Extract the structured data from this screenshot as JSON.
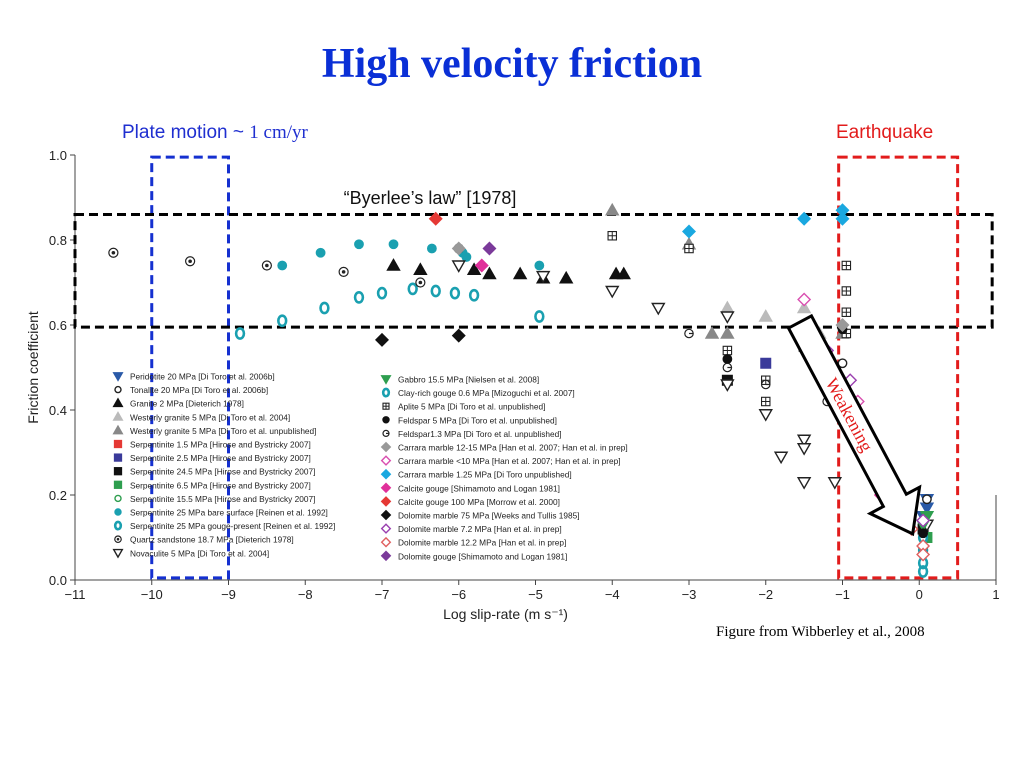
{
  "slide": {
    "title": "High velocity friction",
    "plate_note_prefix": "Plate motion ~ ",
    "plate_note_value": "1 cm/yr",
    "quake_note": "Earthquake",
    "byerlee_note": "“Byerlee’s law” [1978]",
    "weakening_label": "Weakening",
    "source": "Figure from Wibberley et al., 2008"
  },
  "chart_data": {
    "type": "scatter",
    "xlabel": "Log slip-rate (m s⁻¹)",
    "ylabel": "Friction coefficient",
    "xlim": [
      -11,
      1
    ],
    "ylim": [
      0,
      1.0
    ],
    "xticks": [
      -11,
      -10,
      -9,
      -8,
      -7,
      -6,
      -5,
      -4,
      -3,
      -2,
      -1,
      0,
      1
    ],
    "xtick_labels": [
      "−11",
      "−10",
      "−9",
      "−8",
      "−7",
      "−6",
      "−5",
      "−4",
      "−3",
      "−2",
      "−1",
      "0",
      "1"
    ],
    "yticks": [
      0,
      0.2,
      0.4,
      0.6,
      0.8,
      1.0
    ],
    "ytick_labels": [
      "0.0",
      "0.2",
      "0.4",
      "0.6",
      "0.8",
      "1.0"
    ],
    "grid": false,
    "legend_placement": "bottom-left",
    "regions": [
      {
        "label": "plate-motion",
        "x": [
          -10,
          -9
        ],
        "y": [
          0.005,
          0.995
        ],
        "color": "#1530d0"
      },
      {
        "label": "byerlee",
        "x": [
          -11,
          0.95
        ],
        "y": [
          0.595,
          0.86
        ],
        "color": "#000000"
      },
      {
        "label": "earthquake",
        "x": [
          -1.05,
          0.5
        ],
        "y": [
          0.005,
          0.995
        ],
        "color": "#e21c1c"
      }
    ],
    "series": [
      {
        "name": "Peridotite 20 MPa [Di Toro et al. 2006b]",
        "marker": "tri-down",
        "color": "#2a5aa8",
        "fill": true,
        "points": [
          [
            0.1,
            0.19
          ],
          [
            0.1,
            0.17
          ],
          [
            0.05,
            0.15
          ]
        ]
      },
      {
        "name": "Tonalite 20 MPa [Di Toro et al. 2006b]",
        "marker": "circle",
        "color": "#222222",
        "fill": false,
        "points": [
          [
            0.1,
            0.19
          ],
          [
            -1.0,
            0.51
          ],
          [
            -1.0,
            0.45
          ],
          [
            -0.95,
            0.43
          ]
        ]
      },
      {
        "name": "Granite 2 MPa [Dieterich 1978]",
        "marker": "tri-up",
        "color": "#111111",
        "fill": true,
        "points": [
          [
            -6.85,
            0.74
          ],
          [
            -6.5,
            0.73
          ],
          [
            -5.8,
            0.73
          ],
          [
            -5.6,
            0.72
          ],
          [
            -5.2,
            0.72
          ],
          [
            -4.9,
            0.71
          ],
          [
            -4.6,
            0.71
          ],
          [
            -3.95,
            0.72
          ],
          [
            -3.85,
            0.72
          ]
        ]
      },
      {
        "name": "Westerly granite 5 MPa [Di Toro et al. 2004]",
        "marker": "tri-up",
        "color": "#bbbbbb",
        "fill": true,
        "points": [
          [
            -2.5,
            0.64
          ],
          [
            -2.0,
            0.62
          ],
          [
            -1.5,
            0.64
          ],
          [
            -1.3,
            0.58
          ]
        ]
      },
      {
        "name": "Westerly granite 5 MPa [Di Toro et al. unpublished]",
        "marker": "tri-up",
        "color": "#888888",
        "fill": true,
        "points": [
          [
            -4.0,
            0.87
          ],
          [
            -3.0,
            0.79
          ],
          [
            -2.7,
            0.58
          ],
          [
            -2.5,
            0.58
          ],
          [
            -1.0,
            0.58
          ]
        ]
      },
      {
        "name": "Serpentinite 1.5 MPa [Hirose and Bystricky 2007]",
        "marker": "square",
        "color": "#e53935",
        "fill": true,
        "points": [
          [
            -1.2,
            0.53
          ],
          [
            -1.0,
            0.45
          ],
          [
            -0.85,
            0.37
          ],
          [
            -0.4,
            0.25
          ]
        ]
      },
      {
        "name": "Serpentinite 2.5 MPa [Hirose and Bystricky 2007]",
        "marker": "square",
        "color": "#3a3a9a",
        "fill": true,
        "points": [
          [
            -2.0,
            0.51
          ],
          [
            -1.2,
            0.51
          ],
          [
            -0.85,
            0.4
          ],
          [
            -0.4,
            0.23
          ]
        ]
      },
      {
        "name": "Serpentinite 24.5 MPa [Hirose and Bystricky 2007]",
        "marker": "square",
        "color": "#111111",
        "fill": true,
        "points": [
          [
            -2.5,
            0.47
          ],
          [
            -1.5,
            0.55
          ],
          [
            0.05,
            0.12
          ]
        ]
      },
      {
        "name": "Serpentinite 6.5 MPa [Hirose and Bystricky 2007]",
        "marker": "square",
        "color": "#2e9e4f",
        "fill": true,
        "points": [
          [
            0.1,
            0.1
          ]
        ]
      },
      {
        "name": "Serpentinite 15.5 MPa [Hirose and Bystricky 2007]",
        "marker": "circle",
        "color": "#2e9e4f",
        "fill": false,
        "points": [
          [
            0.05,
            0.1
          ]
        ]
      },
      {
        "name": "Serpentinite 25 MPa bare surface [Reinen et al. 1992]",
        "marker": "circle",
        "color": "#1aa0b0",
        "fill": true,
        "points": [
          [
            -8.3,
            0.74
          ],
          [
            -7.8,
            0.77
          ],
          [
            -7.3,
            0.79
          ],
          [
            -6.85,
            0.79
          ],
          [
            -6.35,
            0.78
          ],
          [
            -5.95,
            0.77
          ],
          [
            -4.95,
            0.74
          ],
          [
            -5.9,
            0.76
          ]
        ]
      },
      {
        "name": "Serpentinite 25 MPa gouge-present [Reinen et al. 1992]",
        "marker": "ring",
        "color": "#1aa0b0",
        "fill": false,
        "points": [
          [
            -8.85,
            0.58
          ],
          [
            -8.3,
            0.61
          ],
          [
            -7.75,
            0.64
          ],
          [
            -7.3,
            0.665
          ],
          [
            -7.0,
            0.675
          ],
          [
            -6.6,
            0.685
          ],
          [
            -6.3,
            0.68
          ],
          [
            -6.05,
            0.675
          ],
          [
            -5.8,
            0.67
          ],
          [
            -4.95,
            0.62
          ]
        ]
      },
      {
        "name": "Quartz sandstone 18.7 MPa [Dieterich 1978]",
        "marker": "dot-circle",
        "color": "#222222",
        "fill": false,
        "points": [
          [
            -10.5,
            0.77
          ],
          [
            -9.5,
            0.75
          ],
          [
            -8.5,
            0.74
          ],
          [
            -7.5,
            0.725
          ],
          [
            -6.5,
            0.7
          ],
          [
            -6.0,
            0.78
          ]
        ]
      },
      {
        "name": "Novaculite 5 MPa [Di Toro et al. 2004]",
        "marker": "tri-down",
        "color": "#222222",
        "fill": false,
        "points": [
          [
            -6.0,
            0.74
          ],
          [
            -4.9,
            0.715
          ],
          [
            -4.0,
            0.68
          ],
          [
            -3.4,
            0.64
          ],
          [
            -2.5,
            0.62
          ],
          [
            -2.5,
            0.46
          ],
          [
            -2.0,
            0.39
          ],
          [
            -1.8,
            0.29
          ],
          [
            -1.5,
            0.33
          ],
          [
            -1.5,
            0.31
          ],
          [
            -1.5,
            0.23
          ],
          [
            -1.1,
            0.23
          ],
          [
            0.1,
            0.13
          ]
        ]
      },
      {
        "name": "Gabbro 15.5 MPa [Nielsen et al. 2008]",
        "marker": "tri-down",
        "color": "#2e9e4f",
        "fill": true,
        "points": [
          [
            0.1,
            0.15
          ],
          [
            0.05,
            0.13
          ]
        ]
      },
      {
        "name": "Clay-rich gouge 0.6 MPa [Mizoguchi et al. 2007]",
        "marker": "ring",
        "color": "#1aa0b0",
        "fill": false,
        "points": [
          [
            0.05,
            0.1
          ],
          [
            0.05,
            0.07
          ],
          [
            0.05,
            0.04
          ],
          [
            0.05,
            0.02
          ]
        ]
      },
      {
        "name": "Aplite 5 MPa [Di Toro et al. unpublished]",
        "marker": "box-plus",
        "color": "#222222",
        "fill": false,
        "points": [
          [
            -4.0,
            0.81
          ],
          [
            -3.0,
            0.78
          ],
          [
            -2.5,
            0.54
          ],
          [
            -2.0,
            0.47
          ],
          [
            -2.0,
            0.42
          ],
          [
            -0.95,
            0.74
          ],
          [
            -0.95,
            0.68
          ],
          [
            -0.95,
            0.63
          ],
          [
            -0.95,
            0.58
          ]
        ]
      },
      {
        "name": "Feldspar 5 MPa [Di Toro et al. unpublished]",
        "marker": "circle",
        "color": "#111111",
        "fill": true,
        "points": [
          [
            -2.5,
            0.52
          ],
          [
            -1.0,
            0.59
          ],
          [
            0.05,
            0.11
          ]
        ]
      },
      {
        "name": "Feldspar1.3 MPa [Di Toro et al. unpublished]",
        "marker": "ring-g",
        "color": "#222222",
        "fill": false,
        "points": [
          [
            -3.0,
            0.58
          ],
          [
            -2.5,
            0.5
          ],
          [
            -2.0,
            0.46
          ],
          [
            -1.2,
            0.42
          ]
        ]
      },
      {
        "name": "Carrara marble 12-15 MPa [Han et al. 2007; Han et al. in prep]",
        "marker": "diamond",
        "color": "#999999",
        "fill": true,
        "points": [
          [
            -6.0,
            0.78
          ],
          [
            -1.0,
            0.6
          ]
        ]
      },
      {
        "name": "Carrara marble <10 MPa [Han et al. 2007; Han et al. in prep]",
        "marker": "diamond",
        "color": "#d94fb0",
        "fill": false,
        "points": [
          [
            -1.5,
            0.66
          ],
          [
            -1.3,
            0.55
          ],
          [
            -0.8,
            0.42
          ],
          [
            -0.6,
            0.28
          ],
          [
            -0.3,
            0.15
          ]
        ]
      },
      {
        "name": "Carrara marble 1.25 MPa [Di Toro unpublished]",
        "marker": "diamond",
        "color": "#1aa8e0",
        "fill": true,
        "points": [
          [
            -3.0,
            0.82
          ],
          [
            -1.5,
            0.85
          ],
          [
            -1.0,
            0.87
          ],
          [
            -1.0,
            0.85
          ]
        ]
      },
      {
        "name": "Calcite gouge [Shimamoto and Logan 1981]",
        "marker": "diamond",
        "color": "#e0309a",
        "fill": true,
        "points": [
          [
            -5.7,
            0.74
          ],
          [
            -0.5,
            0.2
          ]
        ]
      },
      {
        "name": "Calcite gouge 100 MPa [Morrow et al. 2000]",
        "marker": "diamond",
        "color": "#e53935",
        "fill": true,
        "points": [
          [
            -6.3,
            0.85
          ]
        ]
      },
      {
        "name": "Dolomite marble 75 MPa [Weeks and Tullis 1985]",
        "marker": "diamond",
        "color": "#111111",
        "fill": true,
        "points": [
          [
            -7.0,
            0.565
          ],
          [
            -6.0,
            0.575
          ]
        ]
      },
      {
        "name": "Dolomite marble 7.2 MPa [Han et al. in prep]",
        "marker": "diamond",
        "color": "#9a40b0",
        "fill": false,
        "points": [
          [
            -1.2,
            0.54
          ],
          [
            -0.9,
            0.47
          ],
          [
            -0.8,
            0.39
          ],
          [
            0.05,
            0.14
          ]
        ]
      },
      {
        "name": "Dolomite marble 12.2 MPa [Han et al. in prep]",
        "marker": "diamond",
        "color": "#e06060",
        "fill": false,
        "points": [
          [
            -0.7,
            0.3
          ],
          [
            -0.1,
            0.12
          ],
          [
            0.05,
            0.08
          ],
          [
            0.05,
            0.06
          ]
        ]
      },
      {
        "name": "Dolomite gouge [Shimamoto and Logan 1981]",
        "marker": "diamond",
        "color": "#7b3a9a",
        "fill": true,
        "points": [
          [
            -5.6,
            0.78
          ]
        ]
      }
    ]
  }
}
